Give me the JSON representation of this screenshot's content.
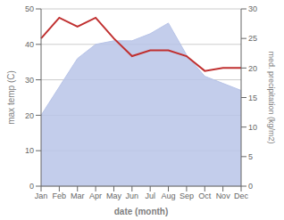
{
  "chart_data": {
    "type": "area",
    "xlabel": "date (month)",
    "ylabel": "max temp (C)",
    "y2label": "med. precipitation (kg/m2)",
    "categories": [
      "Jan",
      "Feb",
      "Mar",
      "Apr",
      "May",
      "Jun",
      "Jul",
      "Aug",
      "Sep",
      "Oct",
      "Nov",
      "Dec"
    ],
    "series": [
      {
        "type": "area",
        "color": "#b8c4e8",
        "values": [
          20,
          28,
          36,
          40,
          41,
          41,
          43,
          46,
          37,
          31,
          29,
          27
        ]
      },
      {
        "type": "line",
        "color": "#c03030",
        "axis": "y2",
        "values": [
          25,
          28.5,
          27,
          28.5,
          25,
          22,
          23,
          23,
          22,
          19.5,
          20,
          20
        ]
      }
    ],
    "ylim": [
      0,
      50
    ],
    "yticks": [
      0,
      10,
      20,
      30,
      40,
      50
    ],
    "y2lim": [
      0,
      30
    ],
    "y2ticks": [
      0,
      5,
      10,
      15,
      20,
      25,
      30
    ],
    "grid": true
  }
}
